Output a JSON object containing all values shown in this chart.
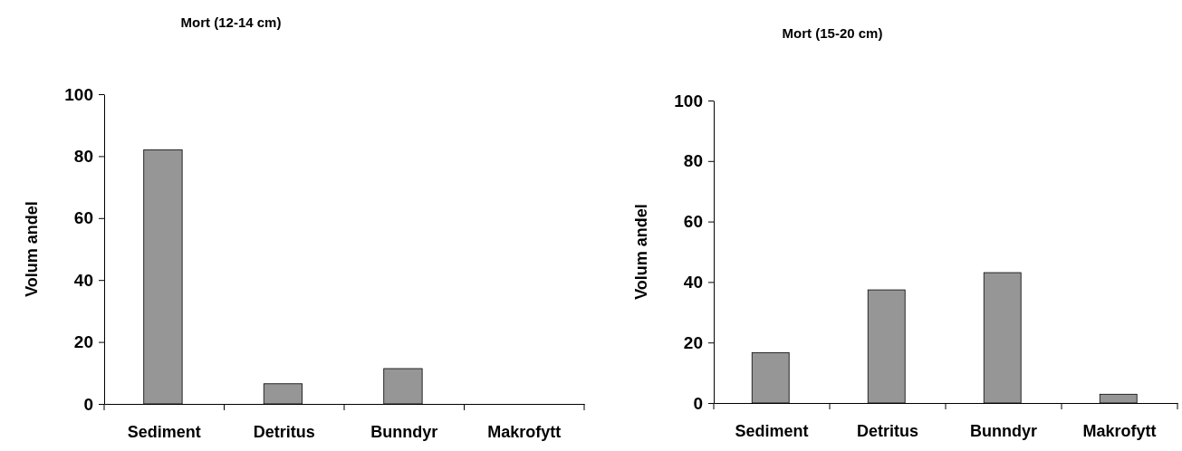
{
  "chart_data": [
    {
      "type": "bar",
      "title": "Mort (12-14 cm)",
      "ylabel": "Volum andel",
      "categories": [
        "Sediment",
        "Detritus",
        "Bunndyr",
        "Makrofytt"
      ],
      "values": [
        82,
        6.5,
        11.4,
        0
      ],
      "color": "#969696",
      "ylim": [
        0,
        100
      ],
      "yticks": [
        0,
        20,
        40,
        60,
        80,
        100
      ],
      "grid": false
    },
    {
      "type": "bar",
      "title": "Mort (15-20 cm)",
      "ylabel": "Volum andel",
      "categories": [
        "Sediment",
        "Detritus",
        "Bunndyr",
        "Makrofytt"
      ],
      "values": [
        16.6,
        37.4,
        43.1,
        2.9
      ],
      "color": "#969696",
      "ylim": [
        0,
        100
      ],
      "yticks": [
        0,
        20,
        40,
        60,
        80,
        100
      ],
      "grid": false
    }
  ]
}
